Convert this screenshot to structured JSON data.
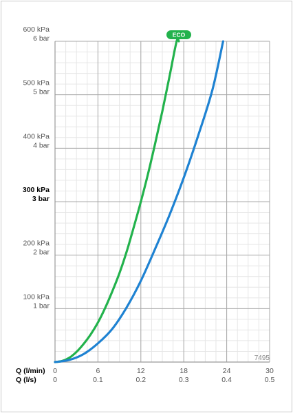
{
  "chart_data": {
    "type": "line",
    "x_unit_labels": [
      "Q (l/min)",
      "Q (l/s)"
    ],
    "xlim": [
      0,
      30
    ],
    "ylim": [
      0,
      600
    ],
    "x_ticks_lmin": [
      "0",
      "6",
      "12",
      "18",
      "24",
      "30"
    ],
    "x_ticks_ls": [
      "0",
      "0.1",
      "0.2",
      "0.3",
      "0.4",
      "0.5"
    ],
    "y_ticks": [
      {
        "value": 100,
        "kpa": "100 kPa",
        "bar": "1 bar",
        "bold": false
      },
      {
        "value": 200,
        "kpa": "200 kPa",
        "bar": "2 bar",
        "bold": false
      },
      {
        "value": 300,
        "kpa": "300 kPa",
        "bar": "3 bar",
        "bold": true
      },
      {
        "value": 400,
        "kpa": "400 kPa",
        "bar": "4 bar",
        "bold": false
      },
      {
        "value": 500,
        "kpa": "500 kPa",
        "bar": "5 bar",
        "bold": false
      },
      {
        "value": 600,
        "kpa": "600 kPa",
        "bar": "6 bar",
        "bold": false
      }
    ],
    "grid": true,
    "code_label": "7495",
    "badge": "ECO",
    "series": [
      {
        "color": "#22b24c",
        "x": [
          0,
          1,
          2,
          3,
          4,
          5,
          6,
          7,
          8,
          9,
          10,
          11,
          12,
          13,
          14,
          15,
          16,
          17,
          17.3
        ],
        "y": [
          0,
          2,
          8,
          19,
          34,
          52,
          74,
          101,
          132,
          166,
          206,
          252,
          300,
          352,
          409,
          469,
          534,
          603,
          600
        ]
      },
      {
        "color": "#1e82d2",
        "x": [
          0,
          2,
          4,
          6,
          8,
          10,
          12,
          14,
          16,
          18,
          20,
          22,
          23.5
        ],
        "y": [
          0,
          4,
          15,
          35,
          62,
          102,
          152,
          212,
          275,
          345,
          423,
          509,
          600
        ]
      }
    ]
  }
}
